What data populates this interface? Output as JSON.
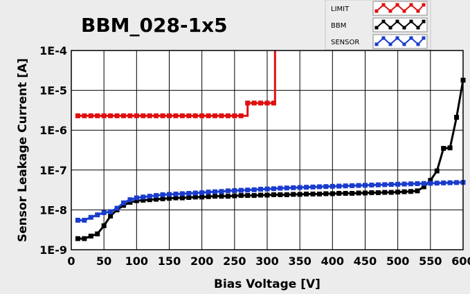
{
  "chart_data": {
    "type": "line",
    "title": "BBM_028-1x5",
    "xlabel": "Bias Voltage [V]",
    "ylabel": "Sensor Leakage Current [A]",
    "xlim": [
      0,
      600
    ],
    "ylim": [
      1e-09,
      0.0001
    ],
    "yscale": "log",
    "grid": true,
    "legend_position": "top-right",
    "x_ticks": [
      "0",
      "50",
      "100",
      "150",
      "200",
      "250",
      "300",
      "350",
      "400",
      "450",
      "500",
      "550",
      "600"
    ],
    "y_ticks": [
      {
        "value": 1e-09,
        "label": "1E-9"
      },
      {
        "value": 1e-08,
        "label": "1E-8"
      },
      {
        "value": 1e-07,
        "label": "1E-7"
      },
      {
        "value": 1e-06,
        "label": "1E-6"
      },
      {
        "value": 1e-05,
        "label": "1E-5"
      },
      {
        "value": 0.0001,
        "label": "1E-4"
      }
    ],
    "series": [
      {
        "name": "LIMIT",
        "color": "#e01010",
        "points": [
          [
            10,
            2.3e-06
          ],
          [
            20,
            2.3e-06
          ],
          [
            30,
            2.3e-06
          ],
          [
            40,
            2.3e-06
          ],
          [
            50,
            2.3e-06
          ],
          [
            60,
            2.3e-06
          ],
          [
            70,
            2.3e-06
          ],
          [
            80,
            2.3e-06
          ],
          [
            90,
            2.3e-06
          ],
          [
            100,
            2.3e-06
          ],
          [
            110,
            2.3e-06
          ],
          [
            120,
            2.3e-06
          ],
          [
            130,
            2.3e-06
          ],
          [
            140,
            2.3e-06
          ],
          [
            150,
            2.3e-06
          ],
          [
            160,
            2.3e-06
          ],
          [
            170,
            2.3e-06
          ],
          [
            180,
            2.3e-06
          ],
          [
            190,
            2.3e-06
          ],
          [
            200,
            2.3e-06
          ],
          [
            210,
            2.3e-06
          ],
          [
            220,
            2.3e-06
          ],
          [
            230,
            2.3e-06
          ],
          [
            240,
            2.3e-06
          ],
          [
            250,
            2.3e-06
          ],
          [
            260,
            2.3e-06
          ],
          [
            270,
            4.8e-06
          ],
          [
            280,
            4.8e-06
          ],
          [
            290,
            4.8e-06
          ],
          [
            300,
            4.8e-06
          ],
          [
            310,
            4.8e-06
          ],
          [
            312,
            0.0001
          ]
        ]
      },
      {
        "name": "BBM",
        "color": "#000000",
        "points": [
          [
            10,
            1.9e-09
          ],
          [
            20,
            1.9e-09
          ],
          [
            30,
            2.2e-09
          ],
          [
            40,
            2.5e-09
          ],
          [
            50,
            4e-09
          ],
          [
            60,
            7e-09
          ],
          [
            70,
            1e-08
          ],
          [
            80,
            1.3e-08
          ],
          [
            90,
            1.55e-08
          ],
          [
            100,
            1.7e-08
          ],
          [
            110,
            1.75e-08
          ],
          [
            120,
            1.8e-08
          ],
          [
            130,
            1.85e-08
          ],
          [
            140,
            1.9e-08
          ],
          [
            150,
            1.95e-08
          ],
          [
            160,
            2e-08
          ],
          [
            170,
            2e-08
          ],
          [
            180,
            2.05e-08
          ],
          [
            190,
            2.1e-08
          ],
          [
            200,
            2.1e-08
          ],
          [
            210,
            2.15e-08
          ],
          [
            220,
            2.2e-08
          ],
          [
            230,
            2.2e-08
          ],
          [
            240,
            2.2e-08
          ],
          [
            250,
            2.25e-08
          ],
          [
            260,
            2.3e-08
          ],
          [
            270,
            2.3e-08
          ],
          [
            280,
            2.3e-08
          ],
          [
            290,
            2.35e-08
          ],
          [
            300,
            2.35e-08
          ],
          [
            310,
            2.4e-08
          ],
          [
            320,
            2.4e-08
          ],
          [
            330,
            2.4e-08
          ],
          [
            340,
            2.45e-08
          ],
          [
            350,
            2.45e-08
          ],
          [
            360,
            2.5e-08
          ],
          [
            370,
            2.5e-08
          ],
          [
            380,
            2.5e-08
          ],
          [
            390,
            2.55e-08
          ],
          [
            400,
            2.55e-08
          ],
          [
            410,
            2.6e-08
          ],
          [
            420,
            2.6e-08
          ],
          [
            430,
            2.6e-08
          ],
          [
            440,
            2.65e-08
          ],
          [
            450,
            2.65e-08
          ],
          [
            460,
            2.7e-08
          ],
          [
            470,
            2.7e-08
          ],
          [
            480,
            2.75e-08
          ],
          [
            490,
            2.75e-08
          ],
          [
            500,
            2.8e-08
          ],
          [
            510,
            2.85e-08
          ],
          [
            520,
            2.9e-08
          ],
          [
            530,
            3e-08
          ],
          [
            540,
            3.8e-08
          ],
          [
            550,
            5.5e-08
          ],
          [
            560,
            9.5e-08
          ],
          [
            570,
            3.5e-07
          ],
          [
            580,
            3.6e-07
          ],
          [
            590,
            2.1e-06
          ],
          [
            600,
            1.8e-05
          ]
        ]
      },
      {
        "name": "SENSOR",
        "color": "#1a3ccc",
        "points": [
          [
            10,
            5.5e-09
          ],
          [
            20,
            5.5e-09
          ],
          [
            30,
            6.5e-09
          ],
          [
            40,
            7.5e-09
          ],
          [
            50,
            8.5e-09
          ],
          [
            60,
            9e-09
          ],
          [
            70,
            1.1e-08
          ],
          [
            80,
            1.5e-08
          ],
          [
            90,
            1.8e-08
          ],
          [
            100,
            2e-08
          ],
          [
            110,
            2.1e-08
          ],
          [
            120,
            2.2e-08
          ],
          [
            130,
            2.3e-08
          ],
          [
            140,
            2.4e-08
          ],
          [
            150,
            2.45e-08
          ],
          [
            160,
            2.5e-08
          ],
          [
            170,
            2.55e-08
          ],
          [
            180,
            2.6e-08
          ],
          [
            190,
            2.65e-08
          ],
          [
            200,
            2.7e-08
          ],
          [
            210,
            2.8e-08
          ],
          [
            220,
            2.85e-08
          ],
          [
            230,
            2.9e-08
          ],
          [
            240,
            3e-08
          ],
          [
            250,
            3.05e-08
          ],
          [
            260,
            3.1e-08
          ],
          [
            270,
            3.15e-08
          ],
          [
            280,
            3.2e-08
          ],
          [
            290,
            3.3e-08
          ],
          [
            300,
            3.35e-08
          ],
          [
            310,
            3.4e-08
          ],
          [
            320,
            3.5e-08
          ],
          [
            330,
            3.55e-08
          ],
          [
            340,
            3.6e-08
          ],
          [
            350,
            3.65e-08
          ],
          [
            360,
            3.7e-08
          ],
          [
            370,
            3.75e-08
          ],
          [
            380,
            3.8e-08
          ],
          [
            390,
            3.85e-08
          ],
          [
            400,
            3.9e-08
          ],
          [
            410,
            3.95e-08
          ],
          [
            420,
            4e-08
          ],
          [
            430,
            4.05e-08
          ],
          [
            440,
            4.1e-08
          ],
          [
            450,
            4.15e-08
          ],
          [
            460,
            4.2e-08
          ],
          [
            470,
            4.25e-08
          ],
          [
            480,
            4.3e-08
          ],
          [
            490,
            4.35e-08
          ],
          [
            500,
            4.4e-08
          ],
          [
            510,
            4.45e-08
          ],
          [
            520,
            4.5e-08
          ],
          [
            530,
            4.55e-08
          ],
          [
            540,
            4.6e-08
          ],
          [
            550,
            4.65e-08
          ],
          [
            560,
            4.7e-08
          ],
          [
            570,
            4.75e-08
          ],
          [
            580,
            4.8e-08
          ],
          [
            590,
            4.85e-08
          ],
          [
            600,
            4.9e-08
          ]
        ]
      }
    ]
  }
}
